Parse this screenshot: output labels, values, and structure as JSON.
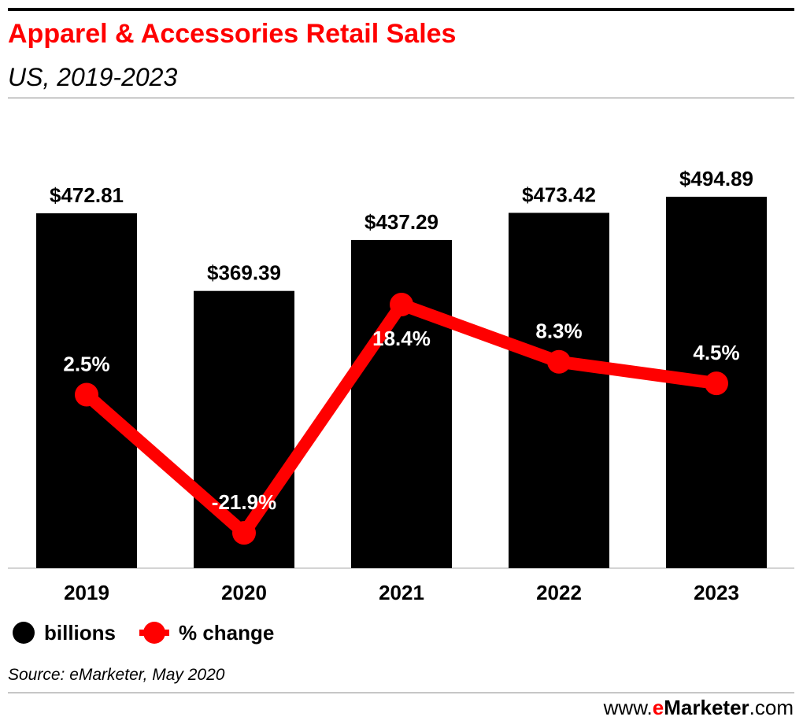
{
  "header": {
    "title": "Apparel & Accessories Retail Sales",
    "subtitle": "US, 2019-2023"
  },
  "legend": {
    "billions": "billions",
    "change": "% change"
  },
  "footer": {
    "source": "Source: eMarketer, May 2020",
    "brand_prefix": "www.",
    "brand_e": "e",
    "brand_name": "Marketer",
    "brand_suffix": ".com"
  },
  "colors": {
    "bar": "#000000",
    "line": "#ff0000",
    "title": "#ff0000"
  },
  "chart_data": {
    "type": "bar",
    "categories": [
      "2019",
      "2020",
      "2021",
      "2022",
      "2023"
    ],
    "series": [
      {
        "name": "billions",
        "type": "bar",
        "values": [
          472.81,
          369.39,
          437.29,
          473.42,
          494.89
        ],
        "labels": [
          "$472.81",
          "$369.39",
          "$437.29",
          "$473.42",
          "$494.89"
        ]
      },
      {
        "name": "% change",
        "type": "line",
        "values": [
          2.5,
          -21.9,
          18.4,
          8.3,
          4.5
        ],
        "labels": [
          "2.5%",
          "-21.9%",
          "18.4%",
          "8.3%",
          "4.5%"
        ]
      }
    ],
    "legend_position": "bottom-left",
    "grid": false
  }
}
